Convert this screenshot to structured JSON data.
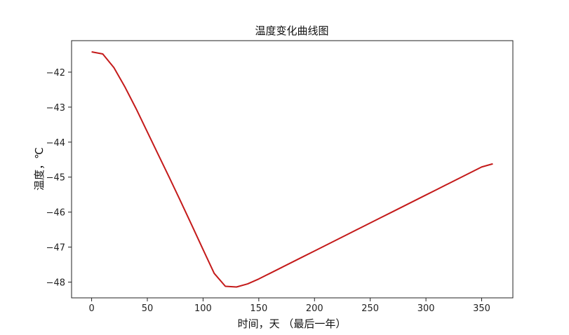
{
  "chart_data": {
    "type": "line",
    "title": "温度变化曲线图",
    "xlabel": "时间，天 （最后一年）",
    "ylabel": "温度，℃",
    "xlim": [
      -18,
      378
    ],
    "ylim": [
      -48.45,
      -41.1
    ],
    "xticks": [
      0,
      50,
      100,
      150,
      200,
      250,
      300,
      350
    ],
    "yticks": [
      -42,
      -43,
      -44,
      -45,
      -46,
      -47,
      -48
    ],
    "grid": false,
    "series": [
      {
        "color": "#c41a1a",
        "x": [
          0,
          10,
          20,
          30,
          40,
          50,
          60,
          70,
          80,
          90,
          100,
          110,
          120,
          130,
          140,
          150,
          160,
          170,
          180,
          190,
          200,
          210,
          220,
          230,
          240,
          250,
          260,
          270,
          280,
          290,
          300,
          310,
          320,
          330,
          340,
          350,
          360
        ],
        "y": [
          -41.42,
          -41.48,
          -41.87,
          -42.43,
          -43.05,
          -43.71,
          -44.37,
          -45.03,
          -45.7,
          -46.38,
          -47.07,
          -47.75,
          -48.12,
          -48.14,
          -48.05,
          -47.91,
          -47.75,
          -47.59,
          -47.43,
          -47.27,
          -47.11,
          -46.95,
          -46.79,
          -46.63,
          -46.47,
          -46.31,
          -46.15,
          -45.99,
          -45.83,
          -45.67,
          -45.51,
          -45.35,
          -45.19,
          -45.03,
          -44.87,
          -44.71,
          -44.62
        ]
      }
    ]
  }
}
